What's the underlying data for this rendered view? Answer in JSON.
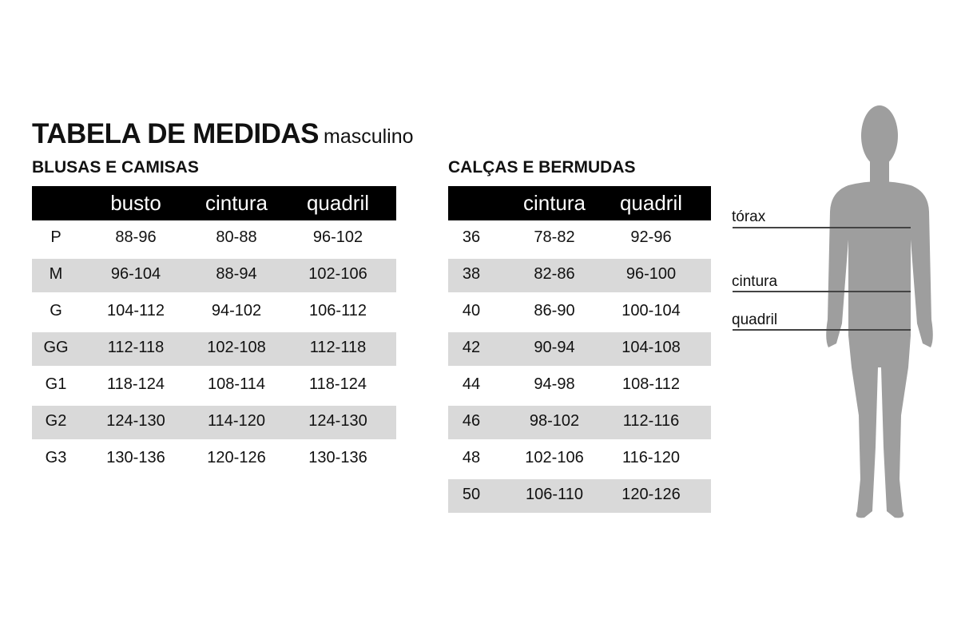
{
  "title": "TABELA DE MEDIDAS",
  "subtitle": "masculino",
  "shirts": {
    "heading": "BLUSAS E CAMISAS",
    "columns": [
      "",
      "busto",
      "cintura",
      "quadril"
    ],
    "rows": [
      [
        "P",
        "88-96",
        "80-88",
        "96-102"
      ],
      [
        "M",
        "96-104",
        "88-94",
        "102-106"
      ],
      [
        "G",
        "104-112",
        "94-102",
        "106-112"
      ],
      [
        "GG",
        "112-118",
        "102-108",
        "112-118"
      ],
      [
        "G1",
        "118-124",
        "108-114",
        "118-124"
      ],
      [
        "G2",
        "124-130",
        "114-120",
        "124-130"
      ],
      [
        "G3",
        "130-136",
        "120-126",
        "130-136"
      ]
    ]
  },
  "pants": {
    "heading": "CALÇAS E BERMUDAS",
    "columns": [
      "",
      "cintura",
      "quadril"
    ],
    "rows": [
      [
        "36",
        "78-82",
        "92-96"
      ],
      [
        "38",
        "82-86",
        "96-100"
      ],
      [
        "40",
        "86-90",
        "100-104"
      ],
      [
        "42",
        "90-94",
        "104-108"
      ],
      [
        "44",
        "94-98",
        "108-112"
      ],
      [
        "46",
        "98-102",
        "112-116"
      ],
      [
        "48",
        "102-106",
        "116-120"
      ],
      [
        "50",
        "106-110",
        "120-126"
      ]
    ]
  },
  "figure": {
    "labels": [
      "tórax",
      "cintura",
      "quadril"
    ],
    "silhouette_color": "#9e9e9e"
  }
}
